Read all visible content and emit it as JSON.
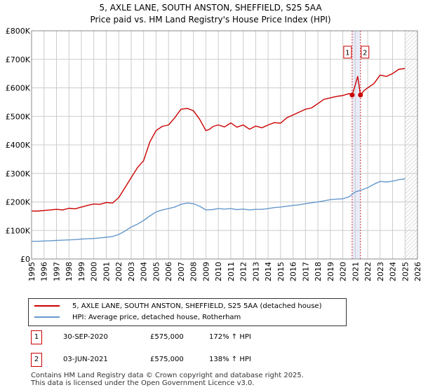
{
  "title_line1": "5, AXLE LANE, SOUTH ANSTON, SHEFFIELD, S25 5AA",
  "title_line2": "Price paid vs. HM Land Registry's House Price Index (HPI)",
  "legend": {
    "property_label": "5, AXLE LANE, SOUTH ANSTON, SHEFFIELD, S25 5AA (detached house)",
    "hpi_label": "HPI: Average price, detached house, Rotherham"
  },
  "transactions": [
    {
      "num": "1",
      "date": "30-SEP-2020",
      "price": "£575,000",
      "hpi": "172% ↑ HPI"
    },
    {
      "num": "2",
      "date": "03-JUN-2021",
      "price": "£575,000",
      "hpi": "138% ↑ HPI"
    }
  ],
  "footer": {
    "line1": "Contains HM Land Registry data © Crown copyright and database right 2025.",
    "line2": "This data is licensed under the Open Government Licence v3.0."
  },
  "chart_data": {
    "type": "line",
    "title": "5, AXLE LANE, SOUTH ANSTON, SHEFFIELD, S25 5AA",
    "subtitle": "Price paid vs. HM Land Registry's House Price Index (HPI)",
    "xlim": [
      1995,
      2026
    ],
    "ylim": [
      0,
      800000
    ],
    "yticks": [
      0,
      100000,
      200000,
      300000,
      400000,
      500000,
      600000,
      700000,
      800000
    ],
    "ytick_labels": [
      "£0",
      "£100K",
      "£200K",
      "£300K",
      "£400K",
      "£500K",
      "£600K",
      "£700K",
      "£800K"
    ],
    "xticks": [
      1995,
      1996,
      1997,
      1998,
      1999,
      2000,
      2001,
      2002,
      2003,
      2004,
      2005,
      2006,
      2007,
      2008,
      2009,
      2010,
      2011,
      2012,
      2013,
      2014,
      2015,
      2016,
      2017,
      2018,
      2019,
      2020,
      2021,
      2022,
      2023,
      2024,
      2025,
      2026
    ],
    "grid": true,
    "series": [
      {
        "name": "5, AXLE LANE, SOUTH ANSTON, SHEFFIELD, S25 5AA (detached house)",
        "color": "#cc0000",
        "x": [
          1995.0,
          1995.5,
          1996.0,
          1996.5,
          1997.0,
          1997.5,
          1998.0,
          1998.5,
          1999.0,
          1999.5,
          2000.0,
          2000.5,
          2001.0,
          2001.5,
          2002.0,
          2002.5,
          2003.0,
          2003.5,
          2004.0,
          2004.5,
          2005.0,
          2005.5,
          2006.0,
          2006.5,
          2007.0,
          2007.5,
          2008.0,
          2008.5,
          2009.0,
          2009.3,
          2009.6,
          2010.0,
          2010.5,
          2011.0,
          2011.5,
          2012.0,
          2012.5,
          2013.0,
          2013.5,
          2014.0,
          2014.5,
          2015.0,
          2015.5,
          2016.0,
          2016.5,
          2017.0,
          2017.5,
          2018.0,
          2018.5,
          2019.0,
          2019.5,
          2020.0,
          2020.5,
          2020.75,
          2021.0,
          2021.2,
          2021.42,
          2021.7,
          2022.0,
          2022.5,
          2023.0,
          2023.5,
          2024.0,
          2024.5,
          2025.0
        ],
        "y": [
          168000,
          168000,
          170000,
          172000,
          174000,
          172000,
          178000,
          176000,
          182000,
          188000,
          193000,
          192000,
          198000,
          196000,
          215000,
          250000,
          285000,
          320000,
          345000,
          410000,
          450000,
          465000,
          470000,
          495000,
          525000,
          528000,
          520000,
          490000,
          450000,
          455000,
          465000,
          470000,
          463000,
          477000,
          462000,
          470000,
          455000,
          466000,
          460000,
          470000,
          478000,
          476000,
          495000,
          505000,
          515000,
          525000,
          530000,
          545000,
          560000,
          565000,
          570000,
          573000,
          580000,
          575000,
          610000,
          640000,
          575000,
          590000,
          600000,
          615000,
          645000,
          640000,
          650000,
          665000,
          668000
        ]
      },
      {
        "name": "HPI: Average price, detached house, Rotherham",
        "color": "#6699cc",
        "x": [
          1995.0,
          1995.5,
          1996.0,
          1996.5,
          1997.0,
          1997.5,
          1998.0,
          1998.5,
          1999.0,
          1999.5,
          2000.0,
          2000.5,
          2001.0,
          2001.5,
          2002.0,
          2002.5,
          2003.0,
          2003.5,
          2004.0,
          2004.5,
          2005.0,
          2005.5,
          2006.0,
          2006.5,
          2007.0,
          2007.5,
          2008.0,
          2008.5,
          2009.0,
          2009.5,
          2010.0,
          2010.5,
          2011.0,
          2011.5,
          2012.0,
          2012.5,
          2013.0,
          2013.5,
          2014.0,
          2014.5,
          2015.0,
          2015.5,
          2016.0,
          2016.5,
          2017.0,
          2017.5,
          2018.0,
          2018.5,
          2019.0,
          2019.5,
          2020.0,
          2020.5,
          2021.0,
          2021.5,
          2022.0,
          2022.5,
          2023.0,
          2023.5,
          2024.0,
          2024.5,
          2025.0
        ],
        "y": [
          62000,
          62000,
          63000,
          64000,
          65000,
          66000,
          67000,
          68000,
          70000,
          71000,
          72000,
          74000,
          76000,
          79000,
          86000,
          98000,
          112000,
          122000,
          135000,
          151000,
          165000,
          172000,
          177000,
          182000,
          192000,
          196000,
          194000,
          185000,
          172000,
          173000,
          177000,
          175000,
          177000,
          173000,
          175000,
          172000,
          174000,
          174000,
          177000,
          180000,
          182000,
          185000,
          188000,
          190000,
          194000,
          197000,
          200000,
          204000,
          208000,
          210000,
          211000,
          218000,
          235000,
          242000,
          250000,
          262000,
          272000,
          270000,
          273000,
          278000,
          281000
        ]
      }
    ],
    "sales": [
      {
        "label": "1",
        "x": 2020.75,
        "y": 575000
      },
      {
        "label": "2",
        "x": 2021.42,
        "y": 575000
      }
    ],
    "future_from": 2025.0
  }
}
